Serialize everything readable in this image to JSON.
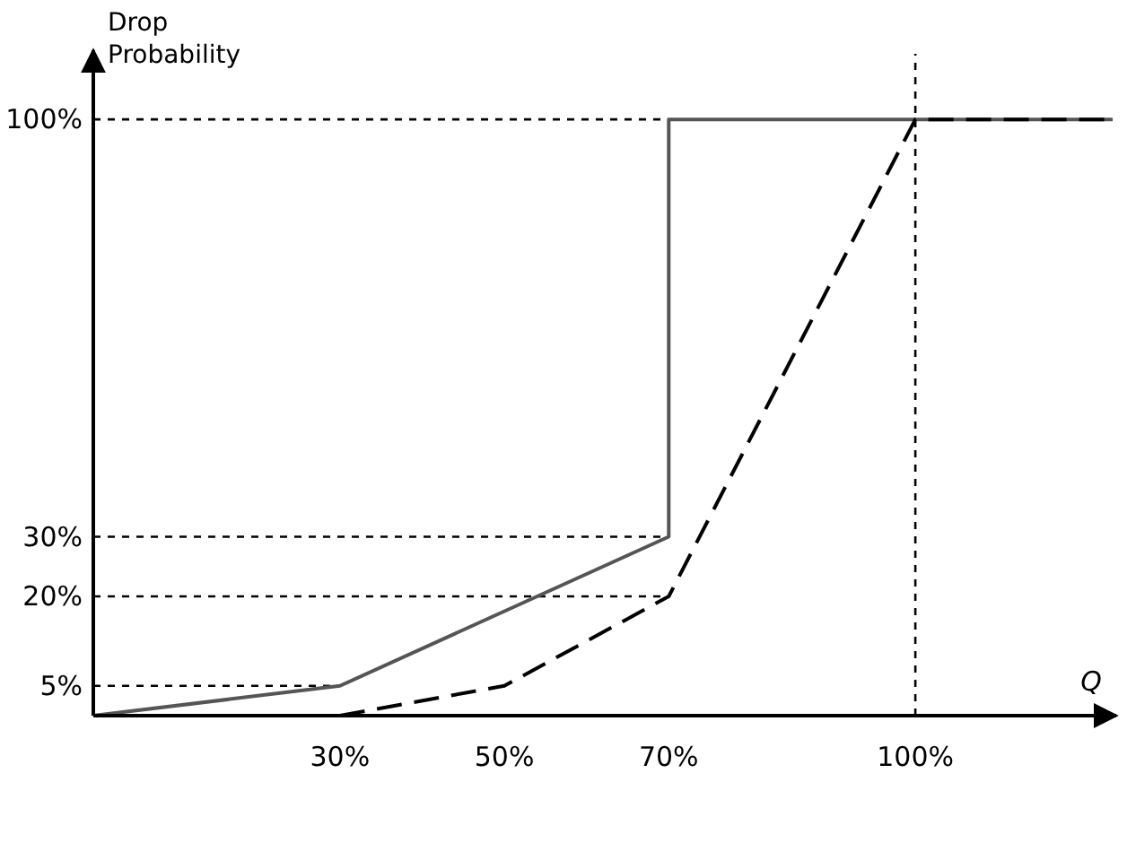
{
  "chart_data": {
    "type": "line",
    "xlabel": "Q",
    "ylabel": "Drop Probability",
    "xlim": [
      0,
      124
    ],
    "ylim": [
      0,
      111
    ],
    "xticks": [
      {
        "value": 30,
        "label": "30%"
      },
      {
        "value": 50,
        "label": "50%"
      },
      {
        "value": 70,
        "label": "70%"
      },
      {
        "value": 100,
        "label": "100%"
      }
    ],
    "yticks": [
      {
        "value": 5,
        "label": "5%"
      },
      {
        "value": 20,
        "label": "20%"
      },
      {
        "value": 30,
        "label": "30%"
      },
      {
        "value": 100,
        "label": "100%"
      }
    ],
    "series": [
      {
        "color": "#555555",
        "line_style": "solid",
        "x": [
          0,
          30,
          70,
          70,
          124
        ],
        "values": [
          0,
          5,
          30,
          100,
          100
        ]
      },
      {
        "color": "#000000",
        "line_style": "dashed",
        "x": [
          30,
          50,
          70,
          100,
          124
        ],
        "values": [
          0,
          5,
          20,
          100,
          100
        ]
      }
    ],
    "ref_lines": [
      {
        "axis": "y",
        "value": 5
      },
      {
        "axis": "y",
        "value": 20
      },
      {
        "axis": "y",
        "value": 30
      },
      {
        "axis": "y",
        "value": 100
      },
      {
        "axis": "x",
        "value": 100
      }
    ],
    "grid": false,
    "marker": "none"
  }
}
